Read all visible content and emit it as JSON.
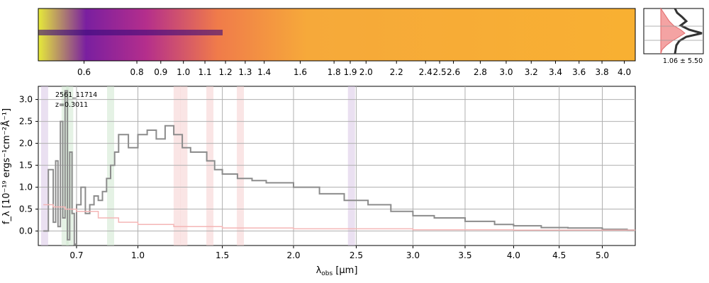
{
  "chart_data": [
    {
      "type": "heatmap",
      "description_source": "2D spectrum strip",
      "colormap": "plasma",
      "top_axis_ticks": [
        "0.6",
        "0.8",
        "0.9",
        "1.0",
        "1.1",
        "1.2",
        "1.3",
        "1.4",
        "1.6",
        "1.8",
        "1.9",
        "2.0",
        "2.2",
        "2.4",
        "2.5",
        "2.6",
        "2.8",
        "3.0",
        "3.2",
        "3.4",
        "3.6",
        "3.8",
        "4.0"
      ]
    },
    {
      "type": "line",
      "description_source": "profile inset",
      "fill_color": "#f4a3a3",
      "label": "1.06 ± 5.50"
    },
    {
      "type": "line",
      "object_label": "2561_11714",
      "redshift_label": "z=0.3011",
      "xlabel_main": "λ",
      "xlabel_sub": "obs",
      "xlabel_unit": " [μm]",
      "ylabel": "f_λ [10⁻¹⁹ ergs⁻¹cm⁻²Å⁻¹]",
      "x_tick_labels": [
        "0.7",
        "1.0",
        "1.5",
        "2.0",
        "2.5",
        "3.0",
        "3.5",
        "4.0",
        "4.5",
        "5.0"
      ],
      "y_tick_labels": [
        "0.0",
        "0.5",
        "1.0",
        "1.5",
        "2.0",
        "2.5",
        "3.0"
      ],
      "ylim": [
        -0.33,
        3.3
      ],
      "grid": true,
      "series": [
        {
          "color": "#8c8c8c",
          "x": [
            0.56,
            0.58,
            0.6,
            0.61,
            0.62,
            0.63,
            0.64,
            0.65,
            0.66,
            0.67,
            0.68,
            0.69,
            0.7,
            0.72,
            0.74,
            0.76,
            0.78,
            0.8,
            0.82,
            0.84,
            0.86,
            0.88,
            0.9,
            0.95,
            1.0,
            1.05,
            1.1,
            1.15,
            1.2,
            1.25,
            1.3,
            1.35,
            1.4,
            1.45,
            1.5,
            1.6,
            1.7,
            1.8,
            2.0,
            2.2,
            2.4,
            2.6,
            2.8,
            3.0,
            3.2,
            3.5,
            3.8,
            4.0,
            4.3,
            4.6,
            5.0,
            5.3,
            5.4
          ],
          "y": [
            0.0,
            1.4,
            0.2,
            1.6,
            0.1,
            2.5,
            0.3,
            3.2,
            -0.2,
            1.8,
            0.4,
            -0.3,
            0.6,
            1.0,
            0.4,
            0.6,
            0.8,
            0.7,
            0.9,
            1.2,
            1.5,
            1.8,
            2.2,
            1.9,
            2.2,
            2.3,
            2.1,
            2.4,
            2.2,
            1.9,
            1.8,
            1.8,
            1.6,
            1.4,
            1.3,
            1.2,
            1.15,
            1.1,
            1.0,
            0.85,
            0.7,
            0.6,
            0.45,
            0.35,
            0.3,
            0.22,
            0.15,
            0.12,
            0.08,
            0.07,
            0.04,
            0.02,
            0.0
          ]
        },
        {
          "color": "#f4b6b6",
          "x": [
            0.56,
            0.6,
            0.65,
            0.7,
            0.8,
            0.9,
            1.0,
            1.2,
            1.5,
            2.0,
            3.0,
            4.0,
            5.0,
            5.4
          ],
          "y": [
            0.6,
            0.55,
            0.5,
            0.45,
            0.3,
            0.2,
            0.15,
            0.1,
            0.07,
            0.05,
            0.03,
            0.02,
            0.02,
            0.02
          ]
        }
      ],
      "band_colors": {
        "purple": "#d9c6e6",
        "green": "#cfe8cf",
        "pink": "#f6cfcf"
      }
    }
  ]
}
